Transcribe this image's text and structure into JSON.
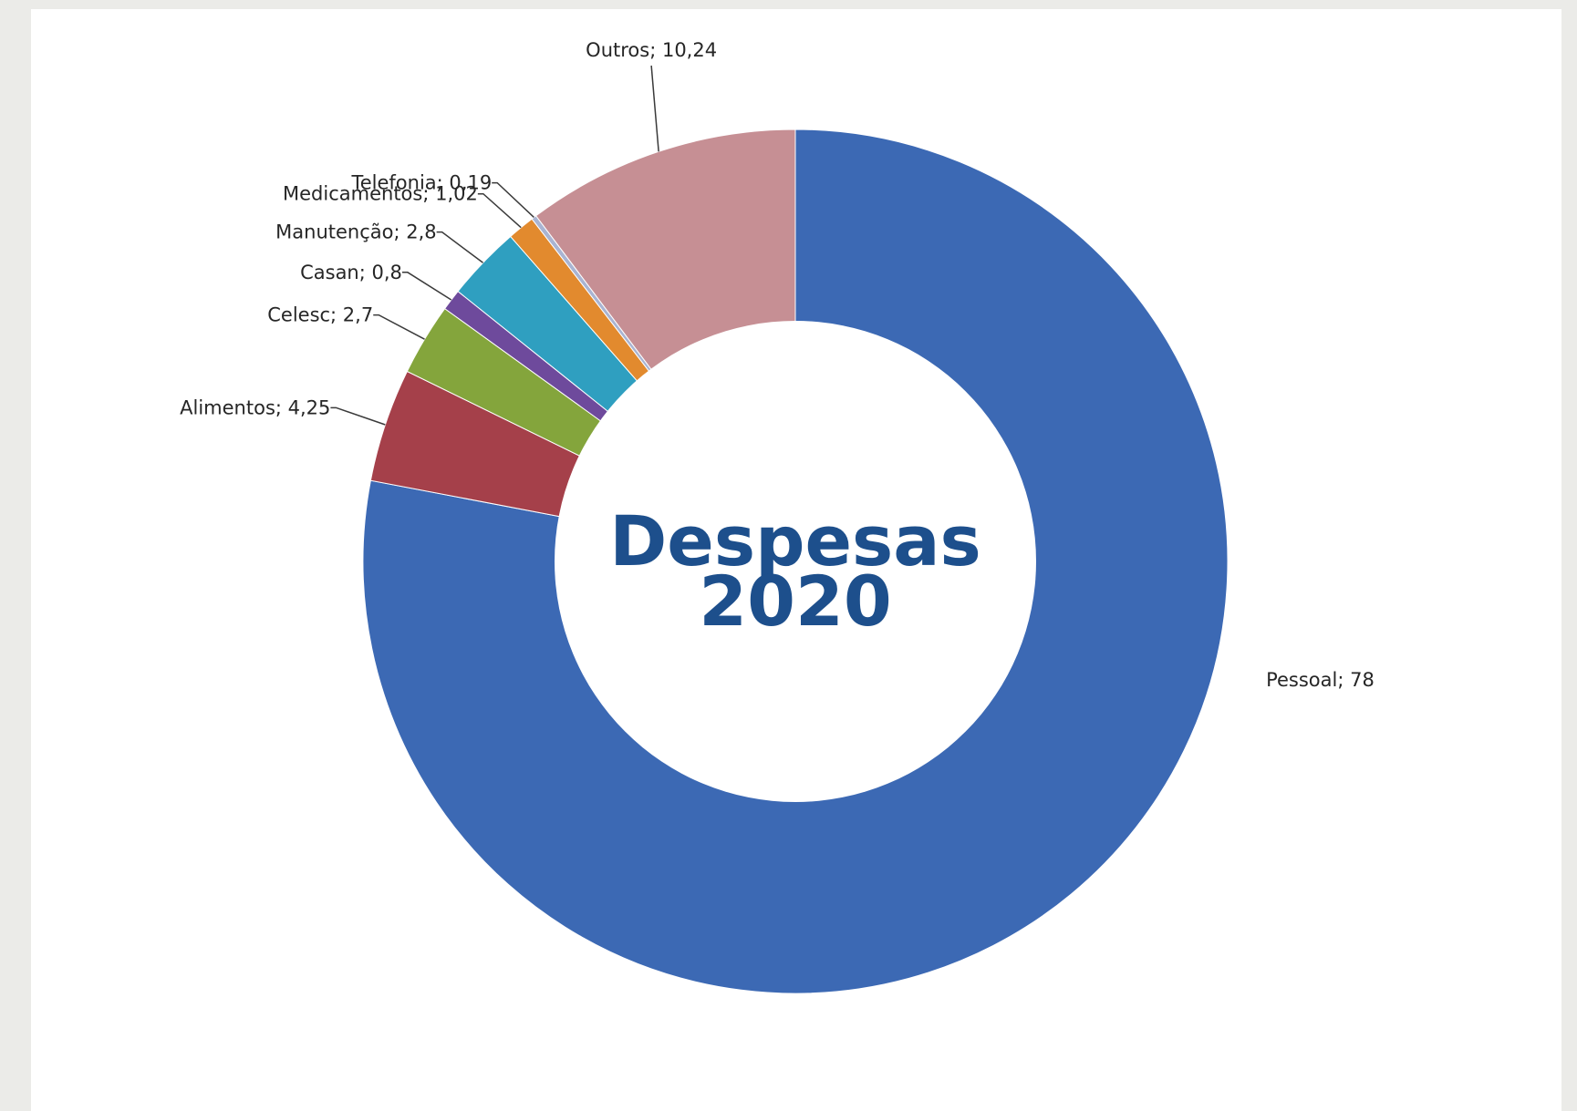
{
  "chart_data": {
    "type": "pie",
    "variant": "donut",
    "center_title": [
      "Despesas",
      "2020"
    ],
    "start": "top, clockwise",
    "label_separator": "; ",
    "slices": [
      {
        "name": "Pessoal",
        "value": 78,
        "label": "78",
        "color": "#3c69b4"
      },
      {
        "name": "Alimentos",
        "value": 4.25,
        "label": "4,25",
        "color": "#a5404a"
      },
      {
        "name": "Celesc",
        "value": 2.7,
        "label": "2,7",
        "color": "#84a53c"
      },
      {
        "name": "Casan",
        "value": 0.8,
        "label": "0,8",
        "color": "#6e4a9c"
      },
      {
        "name": "Manutenção",
        "value": 2.8,
        "label": "2,8",
        "color": "#2f9fc0"
      },
      {
        "name": "Medicamentos",
        "value": 1.02,
        "label": "1,02",
        "color": "#e28a2e"
      },
      {
        "name": "Telefonia",
        "value": 0.19,
        "label": "0,19",
        "color": "#a9b4d2"
      },
      {
        "name": "Outros",
        "value": 10.24,
        "label": "10,24",
        "color": "#c68f94"
      }
    ]
  }
}
